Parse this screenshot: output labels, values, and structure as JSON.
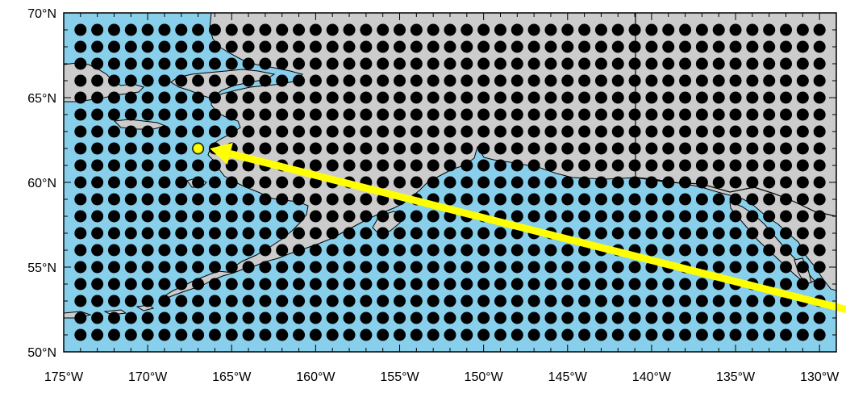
{
  "map": {
    "lon_range": [
      -175,
      -129
    ],
    "lat_range": [
      50,
      70
    ],
    "grid_spacing_deg": 1,
    "colors": {
      "ocean": "#87cfeb",
      "land": "#cccccc",
      "coastline": "#000000",
      "grid_point": "#000000",
      "highlight_point": "#ffff00",
      "arrow": "#ffff00"
    },
    "highlighted_point": {
      "lon": -167,
      "lat": 62
    },
    "arrow": {
      "from": {
        "lon": -129,
        "lat": 52.5
      },
      "to": {
        "lon": -166.3,
        "lat": 62
      }
    },
    "x_ticks": [
      {
        "lon": -175,
        "label": "175°W"
      },
      {
        "lon": -170,
        "label": "170°W"
      },
      {
        "lon": -165,
        "label": "165°W"
      },
      {
        "lon": -160,
        "label": "160°W"
      },
      {
        "lon": -155,
        "label": "155°W"
      },
      {
        "lon": -150,
        "label": "150°W"
      },
      {
        "lon": -145,
        "label": "145°W"
      },
      {
        "lon": -140,
        "label": "140°W"
      },
      {
        "lon": -135,
        "label": "135°W"
      },
      {
        "lon": -130,
        "label": "130°W"
      }
    ],
    "y_ticks": [
      {
        "lat": 70,
        "label": "70°N"
      },
      {
        "lat": 65,
        "label": "65°N"
      },
      {
        "lat": 60,
        "label": "60°N"
      },
      {
        "lat": 55,
        "label": "55°N"
      },
      {
        "lat": 50,
        "label": "50°N"
      }
    ]
  }
}
